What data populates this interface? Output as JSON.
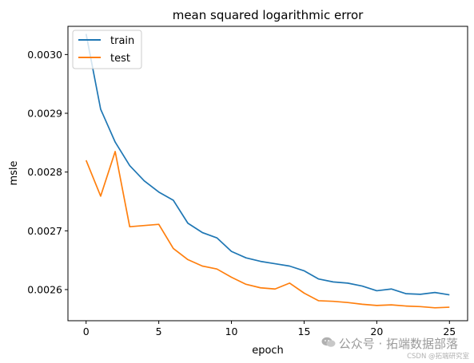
{
  "chart_data": {
    "type": "line",
    "title": "mean squared logarithmic error",
    "xlabel": "epoch",
    "ylabel": "msle",
    "xlim": [
      -1.25,
      26.25
    ],
    "ylim": [
      0.002547,
      0.003048
    ],
    "x_ticks": [
      0,
      5,
      10,
      15,
      20,
      25
    ],
    "x_tick_labels": [
      "0",
      "5",
      "10",
      "15",
      "20",
      "25"
    ],
    "y_ticks": [
      0.0026,
      0.0027,
      0.0028,
      0.0029,
      0.003
    ],
    "y_tick_labels": [
      "0.0026",
      "0.0027",
      "0.0028",
      "0.0029",
      "0.0030"
    ],
    "grid": false,
    "legend_position": "top-left",
    "x": [
      0,
      1,
      2,
      3,
      4,
      5,
      6,
      7,
      8,
      9,
      10,
      11,
      12,
      13,
      14,
      15,
      16,
      17,
      18,
      19,
      20,
      21,
      22,
      23,
      24,
      25
    ],
    "series": [
      {
        "name": "train",
        "color": "#1f77b4",
        "values": [
          0.003035,
          0.002907,
          0.002851,
          0.002811,
          0.002785,
          0.002766,
          0.002752,
          0.002713,
          0.002697,
          0.002688,
          0.002665,
          0.002654,
          0.002648,
          0.002644,
          0.00264,
          0.002632,
          0.002618,
          0.002613,
          0.002611,
          0.002606,
          0.002598,
          0.002601,
          0.002593,
          0.002592,
          0.002595,
          0.002591
        ]
      },
      {
        "name": "test",
        "color": "#ff7f0e",
        "values": [
          0.00282,
          0.002759,
          0.002835,
          0.002707,
          0.002709,
          0.002711,
          0.00267,
          0.002651,
          0.00264,
          0.002635,
          0.002621,
          0.002609,
          0.002603,
          0.002601,
          0.002611,
          0.002594,
          0.002581,
          0.00258,
          0.002578,
          0.002575,
          0.002573,
          0.002574,
          0.002572,
          0.002571,
          0.002569,
          0.00257
        ]
      }
    ]
  },
  "watermark": {
    "text": "公众号 · 拓端数据部落",
    "sub": "CSDN @拓端研究室",
    "icon": "wechat-icon"
  }
}
